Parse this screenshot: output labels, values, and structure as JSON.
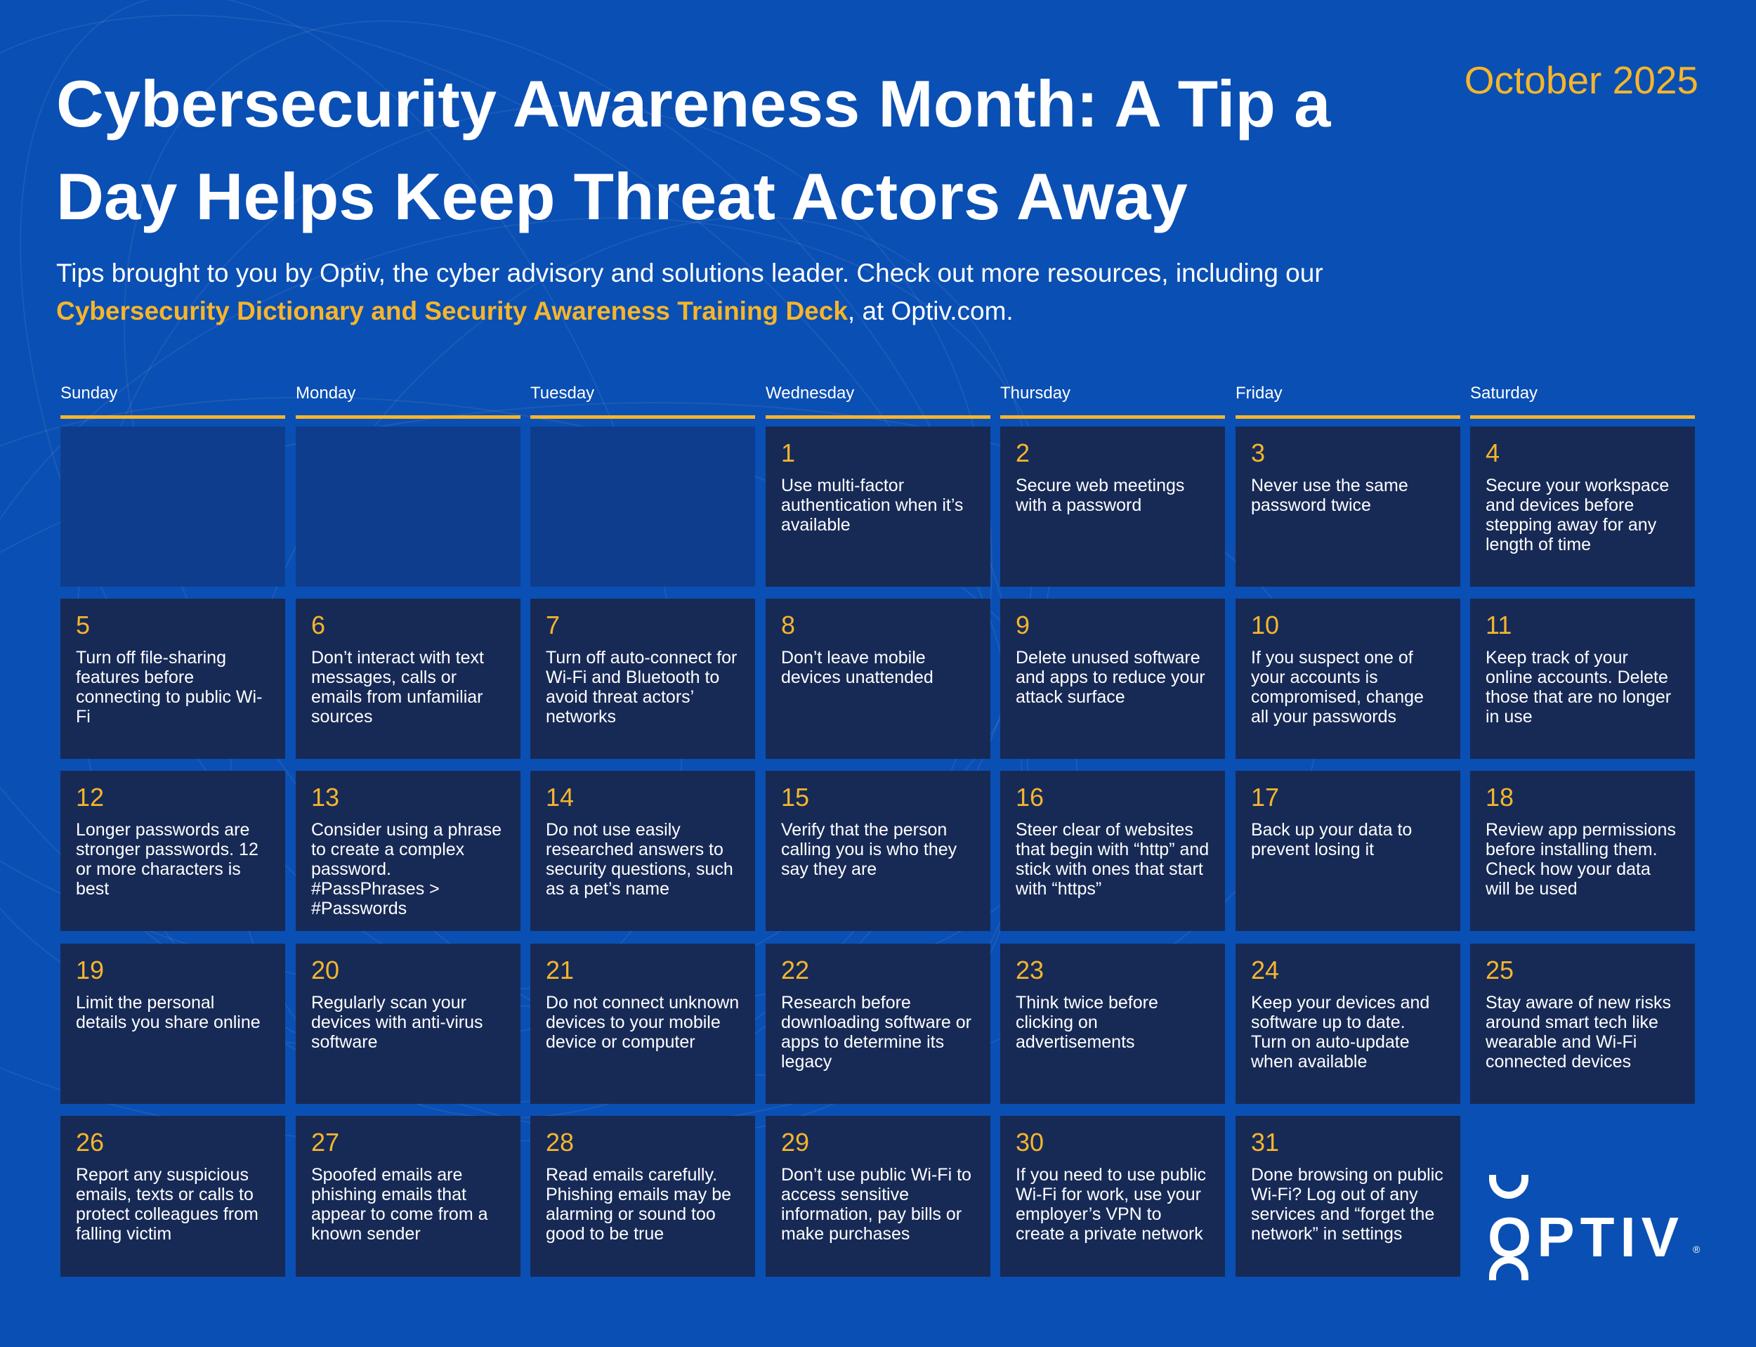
{
  "header": {
    "title": "Cybersecurity Awareness Month: A Tip a Day Helps Keep Threat Actors Away",
    "date": "October 2025",
    "subtitle_pre": "Tips brought to you by Optiv, the cyber advisory and solutions leader. Check out more resources, including our ",
    "subtitle_link": "Cybersecurity Dictionary and Security Awareness Training Deck",
    "subtitle_post": ", at Optiv.com."
  },
  "weekdays": [
    "Sunday",
    "Monday",
    "Tuesday",
    "Wednesday",
    "Thursday",
    "Friday",
    "Saturday"
  ],
  "tips": [
    {
      "day": "1",
      "text": "Use multi-factor authentication when it’s available"
    },
    {
      "day": "2",
      "text": "Secure web meetings with a password"
    },
    {
      "day": "3",
      "text": "Never use the same password twice"
    },
    {
      "day": "4",
      "text": "Secure your workspace and devices before stepping away for any length of time"
    },
    {
      "day": "5",
      "text": "Turn off file-sharing features before connecting to public Wi-Fi"
    },
    {
      "day": "6",
      "text": "Don’t interact with text messages, calls or emails from unfamiliar sources"
    },
    {
      "day": "7",
      "text": "Turn off auto-connect for Wi-Fi and Bluetooth to avoid threat actors’ networks"
    },
    {
      "day": "8",
      "text": "Don’t leave mobile devices unattended"
    },
    {
      "day": "9",
      "text": "Delete unused software and apps to reduce your attack surface"
    },
    {
      "day": "10",
      "text": "If you suspect one of your accounts is compromised, change all your passwords"
    },
    {
      "day": "11",
      "text": "Keep track of your online accounts. Delete those that are no longer in use"
    },
    {
      "day": "12",
      "text": "Longer passwords are stronger passwords. 12 or more characters is best"
    },
    {
      "day": "13",
      "text": "Consider using a phrase to create a complex password. #PassPhrases > #Passwords"
    },
    {
      "day": "14",
      "text": "Do not use easily researched answers to security questions, such as a pet’s name"
    },
    {
      "day": "15",
      "text": "Verify that the person calling you is who they say they are"
    },
    {
      "day": "16",
      "text": "Steer clear of websites that begin with “http” and stick with ones that start with “https”"
    },
    {
      "day": "17",
      "text": "Back up your data to prevent losing it"
    },
    {
      "day": "18",
      "text": "Review app permissions before installing them. Check how your data will be used"
    },
    {
      "day": "19",
      "text": "Limit the personal details you share online"
    },
    {
      "day": "20",
      "text": "Regularly scan your devices with anti-virus software"
    },
    {
      "day": "21",
      "text": "Do not connect unknown devices to your mobile device or computer"
    },
    {
      "day": "22",
      "text": "Research before downloading software or apps to determine its legacy"
    },
    {
      "day": "23",
      "text": "Think twice before clicking on advertisements"
    },
    {
      "day": "24",
      "text": "Keep your devices and software up to date. Turn on auto-update when available"
    },
    {
      "day": "25",
      "text": "Stay aware of new risks around smart tech like wearable and Wi-Fi connected devices"
    },
    {
      "day": "26",
      "text": "Report any suspicious emails, texts or calls to protect colleagues from falling victim"
    },
    {
      "day": "27",
      "text": "Spoofed emails are phishing emails that appear to come from a known sender"
    },
    {
      "day": "28",
      "text": "Read emails carefully. Phishing emails may be alarming or sound too good to be true"
    },
    {
      "day": "29",
      "text": "Don’t use public Wi-Fi to access sensitive information, pay bills or make purchases"
    },
    {
      "day": "30",
      "text": "If you need to use public Wi-Fi for work, use your employer’s VPN to create a private network"
    },
    {
      "day": "31",
      "text": "Done browsing on public Wi-Fi? Log out of any services and “forget the network” in settings"
    }
  ],
  "logo": {
    "text": "OPTIV",
    "reg": "®",
    "icon": "optiv-logo"
  },
  "colors": {
    "background": "#0a4fb3",
    "cell": "#172a56",
    "cell_empty": "#0f3d8d",
    "accent": "#f5b52c",
    "text": "#ffffff"
  }
}
